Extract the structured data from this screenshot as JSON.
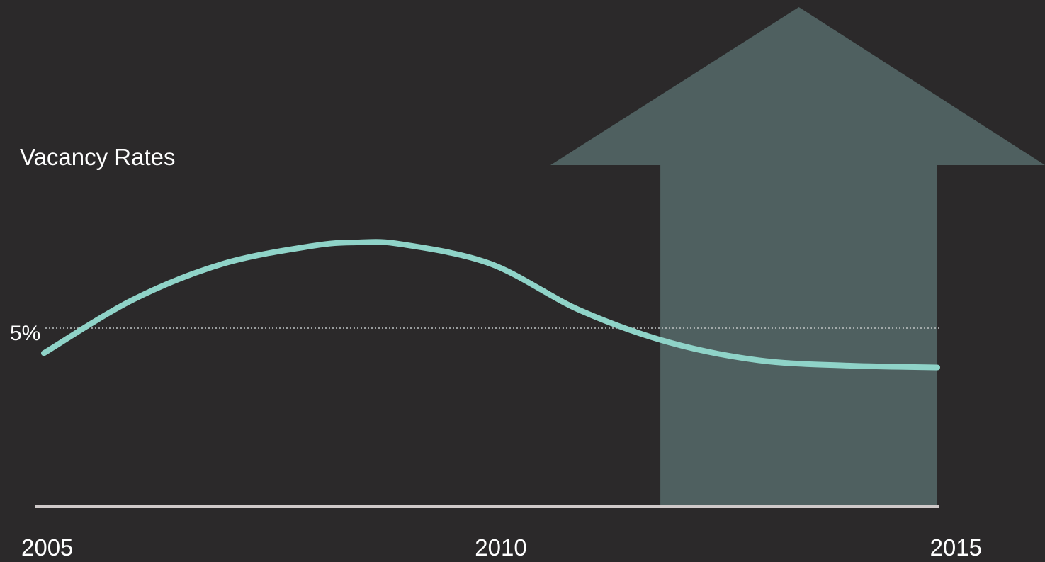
{
  "chart_data": {
    "type": "line",
    "title": "Vacancy Rates",
    "xlabel": "",
    "ylabel": "",
    "x_ticks": [
      "2005",
      "2010",
      "2015"
    ],
    "xlim": [
      2005,
      2015
    ],
    "ylim": [
      0,
      10
    ],
    "reference_line": {
      "label": "5%",
      "value": 5
    },
    "series": [
      {
        "points": [
          [
            2005.0,
            4.3
          ],
          [
            2006.0,
            5.8
          ],
          [
            2007.0,
            6.8
          ],
          [
            2008.0,
            7.3
          ],
          [
            2008.5,
            7.4
          ],
          [
            2009.0,
            7.35
          ],
          [
            2010.0,
            6.8
          ],
          [
            2011.0,
            5.5
          ],
          [
            2012.0,
            4.6
          ],
          [
            2013.0,
            4.1
          ],
          [
            2014.0,
            3.95
          ],
          [
            2015.0,
            3.9
          ]
        ]
      }
    ],
    "annotation": {
      "shape": "up-arrow",
      "x_from": 2011.9,
      "x_to": 2015.0
    },
    "grid": false,
    "colors": {
      "background": "#2b292a",
      "line": "#8fd3c8",
      "arrow": "#4f6060",
      "axis": "#cfc9c9",
      "reference_line": "#bfc4c4",
      "text": "#ffffff"
    }
  }
}
